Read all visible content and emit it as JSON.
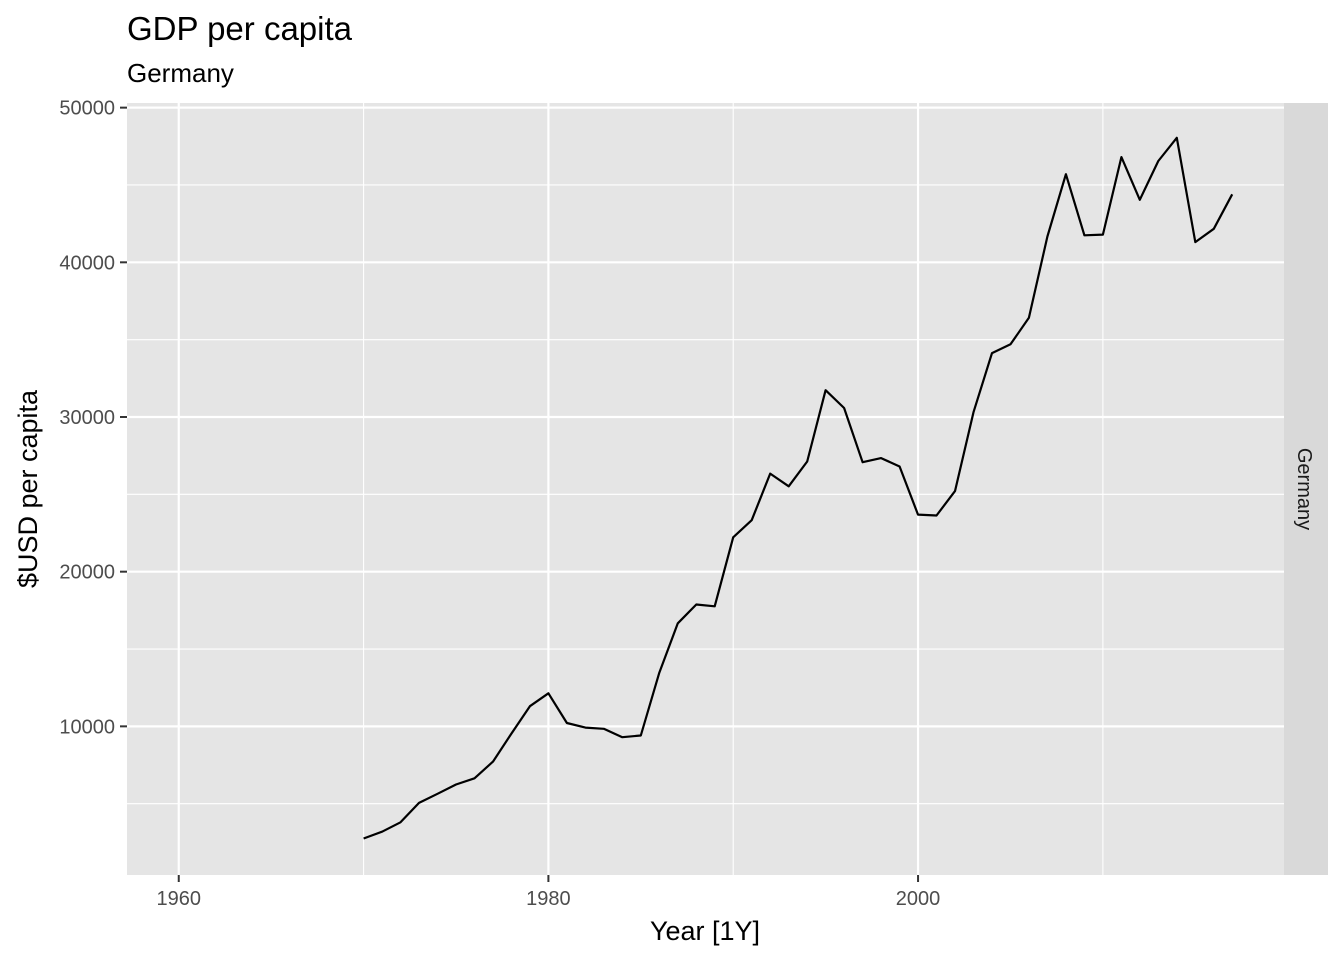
{
  "chart_data": {
    "type": "line",
    "title": "GDP per capita",
    "subtitle": "Germany",
    "xlabel": "Year [1Y]",
    "ylabel": "$USD per capita",
    "facet_label": "Germany",
    "xlim": [
      1957.2,
      2019.8
    ],
    "ylim": [
      390,
      50300
    ],
    "x_ticks": [
      1960,
      1980,
      2000
    ],
    "x_minor_ticks": [
      1970,
      1990,
      2010
    ],
    "y_ticks": [
      10000,
      20000,
      30000,
      40000,
      50000
    ],
    "y_minor_ticks": [
      5000,
      15000,
      25000,
      35000,
      45000
    ],
    "grid": true,
    "legend": "none",
    "colors": {
      "panel": "#e5e5e5",
      "grid": "#ffffff",
      "line": "#000000",
      "strip": "#d9d9d9"
    },
    "series": [
      {
        "x": [
          1970,
          1971,
          1972,
          1973,
          1974,
          1975,
          1976,
          1977,
          1978,
          1979,
          1980,
          1981,
          1982,
          1983,
          1984,
          1985,
          1986,
          1987,
          1988,
          1989,
          1990,
          1991,
          1992,
          1993,
          1994,
          1995,
          1996,
          1997,
          1998,
          1999,
          2000,
          2001,
          2002,
          2003,
          2004,
          2005,
          2006,
          2007,
          2008,
          2009,
          2010,
          2011,
          2012,
          2013,
          2014,
          2015,
          2016,
          2017
        ],
        "y": [
          2750,
          3190,
          3800,
          5050,
          5640,
          6240,
          6640,
          7720,
          9530,
          11300,
          12140,
          10220,
          9920,
          9840,
          9300,
          9410,
          13470,
          16660,
          17880,
          17760,
          22220,
          23330,
          26340,
          25520,
          27120,
          31730,
          30580,
          27080,
          27340,
          26800,
          23690,
          23630,
          25210,
          30310,
          34130,
          34700,
          36410,
          41670,
          45700,
          41750,
          41790,
          46800,
          44040,
          46550,
          48050,
          41310,
          42170,
          44400
        ]
      }
    ]
  }
}
